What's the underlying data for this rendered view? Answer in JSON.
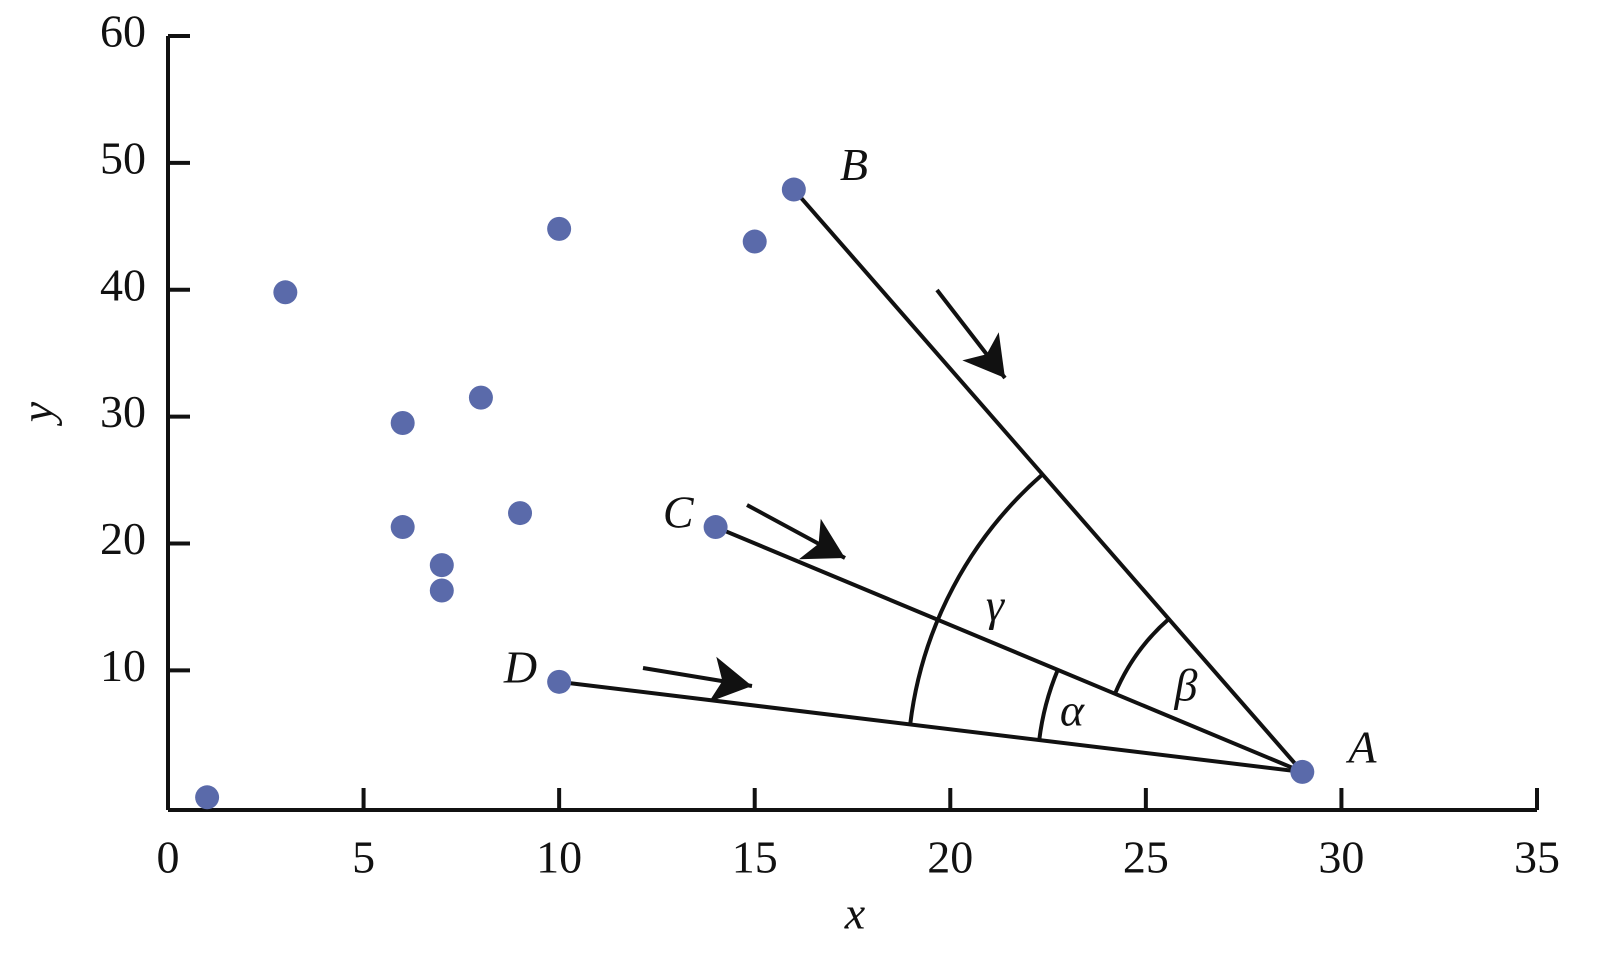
{
  "chart_data": {
    "type": "scatter",
    "x_label": "x",
    "y_label": "y",
    "x": [
      1,
      3,
      6,
      6,
      7,
      7,
      8,
      9,
      10,
      10,
      14,
      15,
      16,
      29
    ],
    "values": [
      0,
      39.8,
      29.5,
      21.3,
      18.3,
      16.3,
      31.5,
      22.4,
      44.8,
      9.1,
      21.3,
      43.8,
      47.9,
      2
    ],
    "point_labels": [
      null,
      null,
      null,
      null,
      null,
      null,
      null,
      null,
      null,
      "D",
      "C",
      null,
      "B",
      "A"
    ],
    "angle_labels": [
      "α",
      "β",
      "γ"
    ],
    "color": "#5a6aaa",
    "xlim": [
      0,
      35
    ],
    "xticks": [
      0,
      5,
      10,
      15,
      20,
      25,
      30,
      35
    ],
    "ylim": [
      -1,
      60
    ],
    "yticks": [
      10,
      20,
      30,
      40,
      50,
      60
    ]
  }
}
